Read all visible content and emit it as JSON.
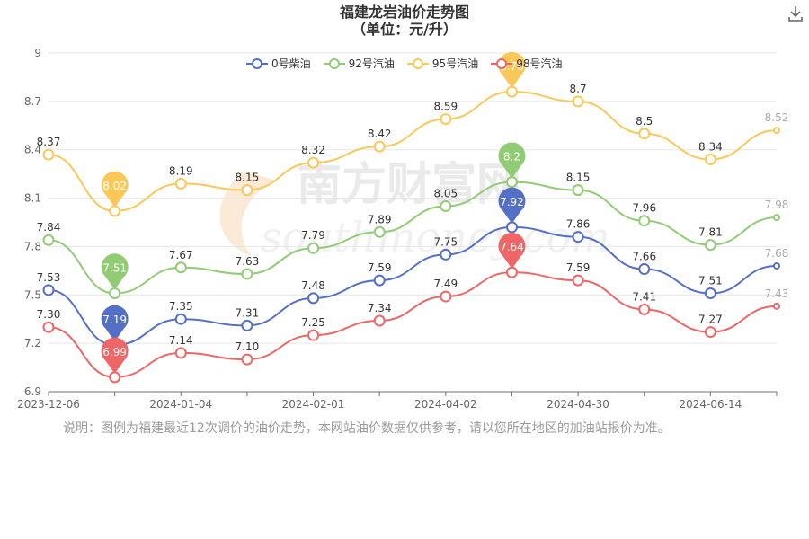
{
  "header": {
    "title_line1": "福建龙岩油价走势图",
    "title_line2": "（单位：元/升）",
    "download_icon": "download-icon"
  },
  "watermark": {
    "text_cn": "南方财富网",
    "text_en": "southmoney.com"
  },
  "note": "说明：图例为福建最近12次调价的油价走势，本网站油价数据仅供参考，请以您所在地区的加油站报价为准。",
  "chart_data": {
    "type": "line",
    "title": "福建龙岩油价走势图",
    "subtitle": "（单位：元/升）",
    "x_tick_labels": [
      "2023-12-06",
      "2024-01-04",
      "2024-02-01",
      "2024-04-02",
      "2024-04-30",
      "2024-06-14"
    ],
    "ylim": [
      6.9,
      9
    ],
    "y_ticks": [
      "6.9",
      "7.2",
      "7.5",
      "7.8",
      "8.1",
      "8.4",
      "8.7",
      "9"
    ],
    "grid": true,
    "legend_position": "top",
    "series": [
      {
        "name": "0号柴油",
        "color": "#5470c6",
        "values": [
          7.53,
          7.19,
          7.35,
          7.31,
          7.48,
          7.59,
          7.75,
          7.92,
          7.86,
          7.66,
          7.51,
          7.68
        ],
        "labels": [
          "7.53",
          "",
          "7.35",
          "7.31",
          "7.48",
          "7.59",
          "7.75",
          "",
          "7.86",
          "7.66",
          "7.51",
          "7.68"
        ]
      },
      {
        "name": "92号汽油",
        "color": "#91cc75",
        "values": [
          7.84,
          7.51,
          7.67,
          7.63,
          7.79,
          7.89,
          8.05,
          8.2,
          8.15,
          7.96,
          7.81,
          7.98
        ],
        "labels": [
          "7.84",
          "",
          "7.67",
          "7.63",
          "7.79",
          "7.89",
          "8.05",
          "",
          "8.15",
          "7.96",
          "7.81",
          "7.98"
        ]
      },
      {
        "name": "95号汽油",
        "color": "#fac858",
        "values": [
          8.37,
          8.02,
          8.19,
          8.15,
          8.32,
          8.42,
          8.59,
          8.76,
          8.7,
          8.5,
          8.34,
          8.52
        ],
        "labels": [
          "8.37",
          "",
          "8.19",
          "8.15",
          "8.32",
          "8.42",
          "8.59",
          "",
          "8.7",
          "8.5",
          "8.34",
          "8.52"
        ]
      },
      {
        "name": "98号汽油",
        "color": "#ee6666",
        "values": [
          7.3,
          6.99,
          7.14,
          7.1,
          7.25,
          7.34,
          7.49,
          7.64,
          7.59,
          7.41,
          7.27,
          7.43
        ],
        "labels": [
          "7.30",
          "",
          "7.14",
          "7.10",
          "7.25",
          "7.34",
          "7.49",
          "",
          "7.59",
          "7.41",
          "7.27",
          "7.43"
        ]
      }
    ],
    "pins": [
      {
        "series": 0,
        "index": 1,
        "label": "7.19"
      },
      {
        "series": 0,
        "index": 7,
        "label": "7.92"
      },
      {
        "series": 1,
        "index": 1,
        "label": "7.51"
      },
      {
        "series": 1,
        "index": 7,
        "label": "8.2"
      },
      {
        "series": 2,
        "index": 1,
        "label": "8.02"
      },
      {
        "series": 2,
        "index": 7,
        "label": "8.76"
      },
      {
        "series": 3,
        "index": 1,
        "label": "6.99"
      },
      {
        "series": 3,
        "index": 7,
        "label": "7.64"
      }
    ]
  }
}
